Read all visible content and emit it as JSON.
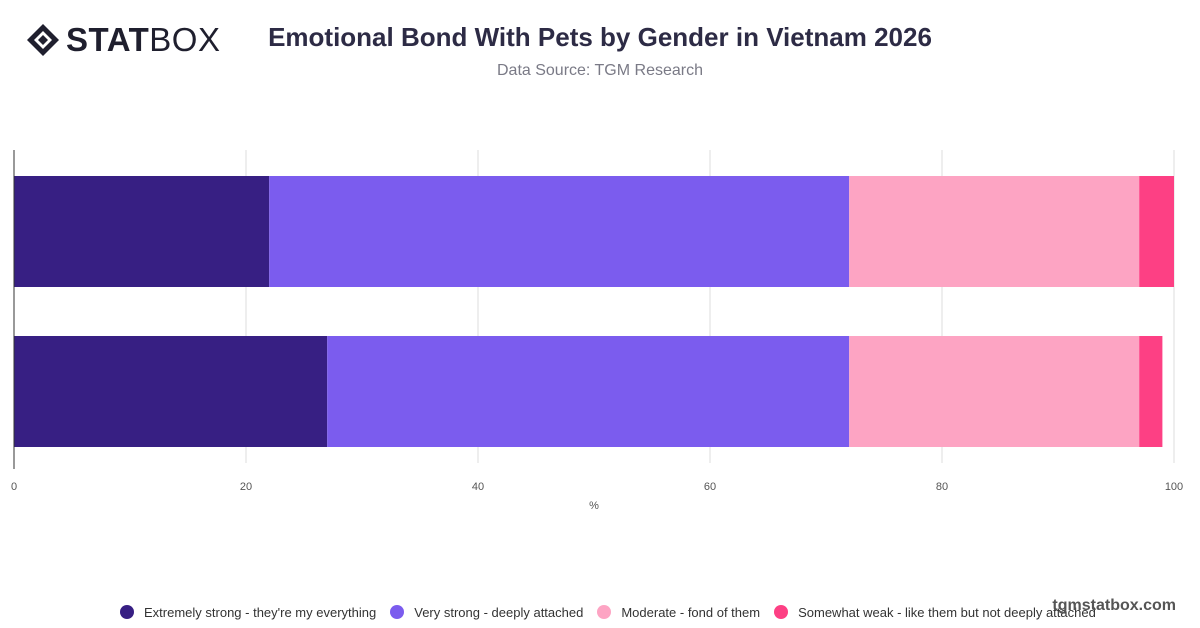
{
  "brand": {
    "logo_bold": "STAT",
    "logo_light": "BOX",
    "watermark": "tgmstatbox.com"
  },
  "header": {
    "title": "Emotional Bond With Pets by Gender in Vietnam 2026",
    "subtitle": "Data Source: TGM Research"
  },
  "chart_data": {
    "type": "bar",
    "orientation": "horizontal",
    "stacked": true,
    "title": "Emotional Bond With Pets by Gender in Vietnam 2026",
    "subtitle": "Data Source: TGM Research",
    "categories": [
      "",
      ""
    ],
    "xlabel": "%",
    "ylabel": "",
    "xlim": [
      0,
      100
    ],
    "xticks": [
      0,
      20,
      40,
      60,
      80,
      100
    ],
    "grid": true,
    "legend_position": "bottom",
    "series": [
      {
        "name": "Extremely strong - they're my everything",
        "color": "#371f83",
        "values": [
          22,
          27
        ]
      },
      {
        "name": "Very strong - deeply attached",
        "color": "#7b5cee",
        "values": [
          50,
          45
        ]
      },
      {
        "name": "Moderate - fond of them",
        "color": "#fda4c3",
        "values": [
          25,
          25
        ]
      },
      {
        "name": "Somewhat weak - like them but not deeply attached",
        "color": "#fd4084",
        "values": [
          3,
          2
        ]
      }
    ]
  }
}
